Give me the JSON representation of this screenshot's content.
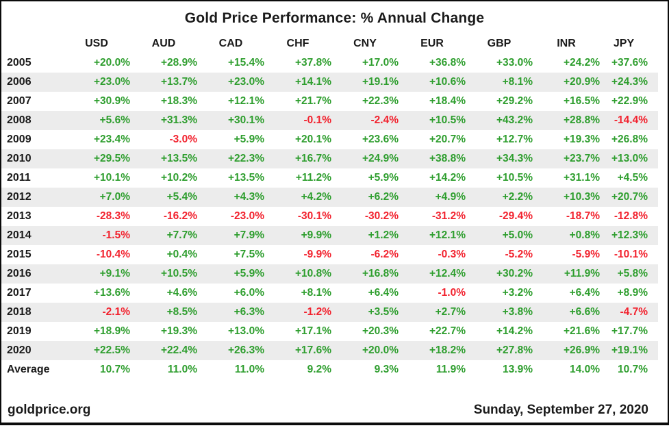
{
  "title": "Gold Price Performance: % Annual Change",
  "footer": {
    "source": "goldprice.org",
    "date": "Sunday, September 27, 2020"
  },
  "colors": {
    "positive": "#2e9e2e",
    "negative": "#f2222e",
    "stripe": "#ececec",
    "text": "#1a1a1a"
  },
  "chart_data": {
    "type": "table",
    "title": "Gold Price Performance: % Annual Change",
    "columns": [
      "USD",
      "AUD",
      "CAD",
      "CHF",
      "CNY",
      "EUR",
      "GBP",
      "INR",
      "JPY"
    ],
    "rows": [
      {
        "label": "2005",
        "values": [
          "+20.0%",
          "+28.9%",
          "+15.4%",
          "+37.8%",
          "+17.0%",
          "+36.8%",
          "+33.0%",
          "+24.2%",
          "+37.6%"
        ]
      },
      {
        "label": "2006",
        "values": [
          "+23.0%",
          "+13.7%",
          "+23.0%",
          "+14.1%",
          "+19.1%",
          "+10.6%",
          "+8.1%",
          "+20.9%",
          "+24.3%"
        ]
      },
      {
        "label": "2007",
        "values": [
          "+30.9%",
          "+18.3%",
          "+12.1%",
          "+21.7%",
          "+22.3%",
          "+18.4%",
          "+29.2%",
          "+16.5%",
          "+22.9%"
        ]
      },
      {
        "label": "2008",
        "values": [
          "+5.6%",
          "+31.3%",
          "+30.1%",
          "-0.1%",
          "-2.4%",
          "+10.5%",
          "+43.2%",
          "+28.8%",
          "-14.4%"
        ]
      },
      {
        "label": "2009",
        "values": [
          "+23.4%",
          "-3.0%",
          "+5.9%",
          "+20.1%",
          "+23.6%",
          "+20.7%",
          "+12.7%",
          "+19.3%",
          "+26.8%"
        ]
      },
      {
        "label": "2010",
        "values": [
          "+29.5%",
          "+13.5%",
          "+22.3%",
          "+16.7%",
          "+24.9%",
          "+38.8%",
          "+34.3%",
          "+23.7%",
          "+13.0%"
        ]
      },
      {
        "label": "2011",
        "values": [
          "+10.1%",
          "+10.2%",
          "+13.5%",
          "+11.2%",
          "+5.9%",
          "+14.2%",
          "+10.5%",
          "+31.1%",
          "+4.5%"
        ]
      },
      {
        "label": "2012",
        "values": [
          "+7.0%",
          "+5.4%",
          "+4.3%",
          "+4.2%",
          "+6.2%",
          "+4.9%",
          "+2.2%",
          "+10.3%",
          "+20.7%"
        ]
      },
      {
        "label": "2013",
        "values": [
          "-28.3%",
          "-16.2%",
          "-23.0%",
          "-30.1%",
          "-30.2%",
          "-31.2%",
          "-29.4%",
          "-18.7%",
          "-12.8%"
        ]
      },
      {
        "label": "2014",
        "values": [
          "-1.5%",
          "+7.7%",
          "+7.9%",
          "+9.9%",
          "+1.2%",
          "+12.1%",
          "+5.0%",
          "+0.8%",
          "+12.3%"
        ]
      },
      {
        "label": "2015",
        "values": [
          "-10.4%",
          "+0.4%",
          "+7.5%",
          "-9.9%",
          "-6.2%",
          "-0.3%",
          "-5.2%",
          "-5.9%",
          "-10.1%"
        ]
      },
      {
        "label": "2016",
        "values": [
          "+9.1%",
          "+10.5%",
          "+5.9%",
          "+10.8%",
          "+16.8%",
          "+12.4%",
          "+30.2%",
          "+11.9%",
          "+5.8%"
        ]
      },
      {
        "label": "2017",
        "values": [
          "+13.6%",
          "+4.6%",
          "+6.0%",
          "+8.1%",
          "+6.4%",
          "-1.0%",
          "+3.2%",
          "+6.4%",
          "+8.9%"
        ]
      },
      {
        "label": "2018",
        "values": [
          "-2.1%",
          "+8.5%",
          "+6.3%",
          "-1.2%",
          "+3.5%",
          "+2.7%",
          "+3.8%",
          "+6.6%",
          "-4.7%"
        ]
      },
      {
        "label": "2019",
        "values": [
          "+18.9%",
          "+19.3%",
          "+13.0%",
          "+17.1%",
          "+20.3%",
          "+22.7%",
          "+14.2%",
          "+21.6%",
          "+17.7%"
        ]
      },
      {
        "label": "2020",
        "values": [
          "+22.5%",
          "+22.4%",
          "+26.3%",
          "+17.6%",
          "+20.0%",
          "+18.2%",
          "+27.8%",
          "+26.9%",
          "+19.1%"
        ]
      },
      {
        "label": "Average",
        "values": [
          "10.7%",
          "11.0%",
          "11.0%",
          "9.2%",
          "9.3%",
          "11.9%",
          "13.9%",
          "14.0%",
          "10.7%"
        ]
      }
    ]
  }
}
